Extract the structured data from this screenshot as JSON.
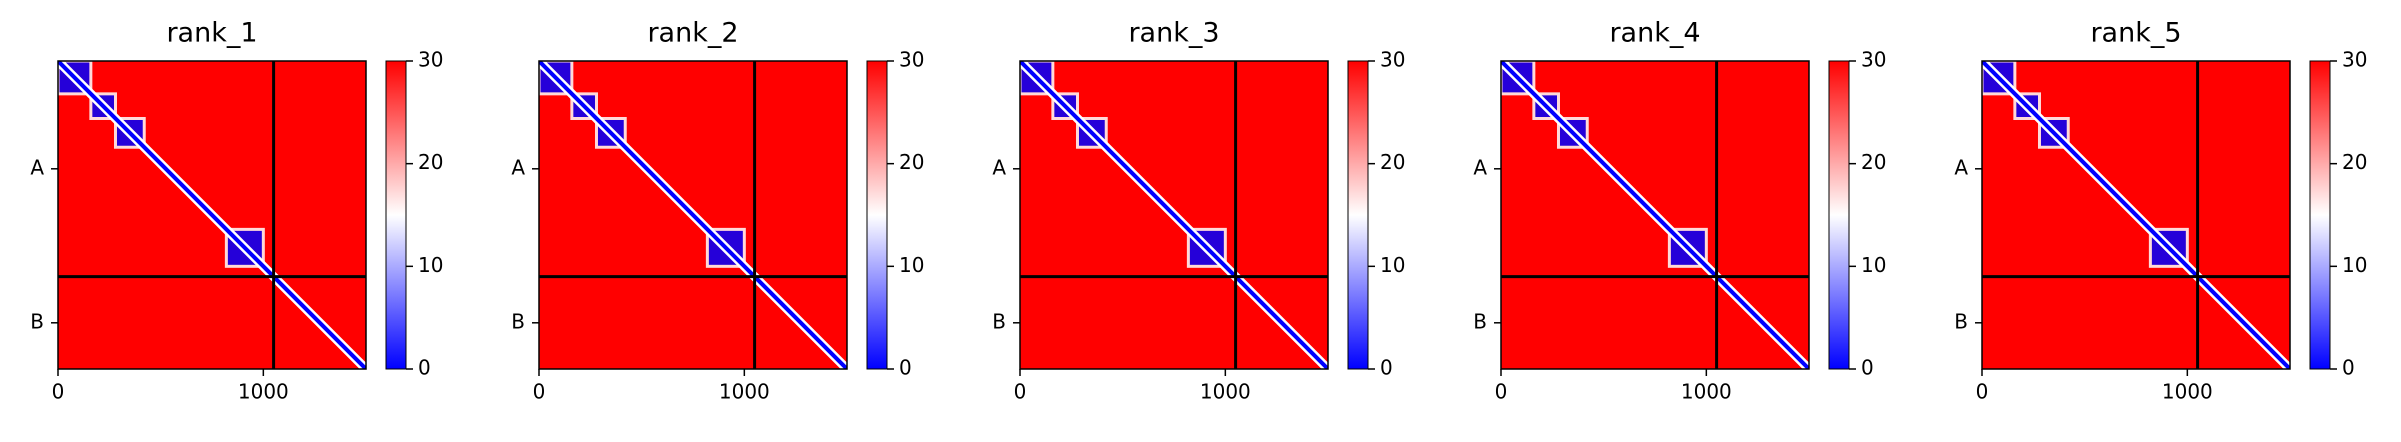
{
  "chart_data": [
    {
      "type": "heatmap",
      "title": "rank_1",
      "xlim": [
        0,
        1500
      ],
      "xticks": [
        0,
        1000
      ],
      "ylim": [
        1500,
        0
      ],
      "yticks": [
        {
          "value": 525,
          "label": "A"
        },
        {
          "value": 1275,
          "label": "B"
        }
      ],
      "chain_break": 1050,
      "clim": [
        0,
        30
      ],
      "cticks": [
        0,
        10,
        20,
        30
      ],
      "colors": [
        "#0000ff",
        "#ffffff",
        "#ff0000"
      ],
      "blocks": [
        [
          0,
          160
        ],
        [
          160,
          280
        ],
        [
          280,
          420
        ],
        [
          820,
          1000
        ]
      ]
    },
    {
      "type": "heatmap",
      "title": "rank_2",
      "xlim": [
        0,
        1500
      ],
      "xticks": [
        0,
        1000
      ],
      "ylim": [
        1500,
        0
      ],
      "yticks": [
        {
          "value": 525,
          "label": "A"
        },
        {
          "value": 1275,
          "label": "B"
        }
      ],
      "chain_break": 1050,
      "clim": [
        0,
        30
      ],
      "cticks": [
        0,
        10,
        20,
        30
      ],
      "colors": [
        "#0000ff",
        "#ffffff",
        "#ff0000"
      ],
      "blocks": [
        [
          0,
          160
        ],
        [
          160,
          280
        ],
        [
          280,
          420
        ],
        [
          820,
          1000
        ]
      ]
    },
    {
      "type": "heatmap",
      "title": "rank_3",
      "xlim": [
        0,
        1500
      ],
      "xticks": [
        0,
        1000
      ],
      "ylim": [
        1500,
        0
      ],
      "yticks": [
        {
          "value": 525,
          "label": "A"
        },
        {
          "value": 1275,
          "label": "B"
        }
      ],
      "chain_break": 1050,
      "clim": [
        0,
        30
      ],
      "cticks": [
        0,
        10,
        20,
        30
      ],
      "colors": [
        "#0000ff",
        "#ffffff",
        "#ff0000"
      ],
      "blocks": [
        [
          0,
          160
        ],
        [
          160,
          280
        ],
        [
          280,
          420
        ],
        [
          820,
          1000
        ]
      ]
    },
    {
      "type": "heatmap",
      "title": "rank_4",
      "xlim": [
        0,
        1500
      ],
      "xticks": [
        0,
        1000
      ],
      "ylim": [
        1500,
        0
      ],
      "yticks": [
        {
          "value": 525,
          "label": "A"
        },
        {
          "value": 1275,
          "label": "B"
        }
      ],
      "chain_break": 1050,
      "clim": [
        0,
        30
      ],
      "cticks": [
        0,
        10,
        20,
        30
      ],
      "colors": [
        "#0000ff",
        "#ffffff",
        "#ff0000"
      ],
      "blocks": [
        [
          0,
          160
        ],
        [
          160,
          280
        ],
        [
          280,
          420
        ],
        [
          820,
          1000
        ]
      ]
    },
    {
      "type": "heatmap",
      "title": "rank_5",
      "xlim": [
        0,
        1500
      ],
      "xticks": [
        0,
        1000
      ],
      "ylim": [
        1500,
        0
      ],
      "yticks": [
        {
          "value": 525,
          "label": "A"
        },
        {
          "value": 1275,
          "label": "B"
        }
      ],
      "chain_break": 1050,
      "clim": [
        0,
        30
      ],
      "cticks": [
        0,
        10,
        20,
        30
      ],
      "colors": [
        "#0000ff",
        "#ffffff",
        "#ff0000"
      ],
      "blocks": [
        [
          0,
          160
        ],
        [
          160,
          280
        ],
        [
          280,
          420
        ],
        [
          820,
          1000
        ]
      ]
    }
  ]
}
